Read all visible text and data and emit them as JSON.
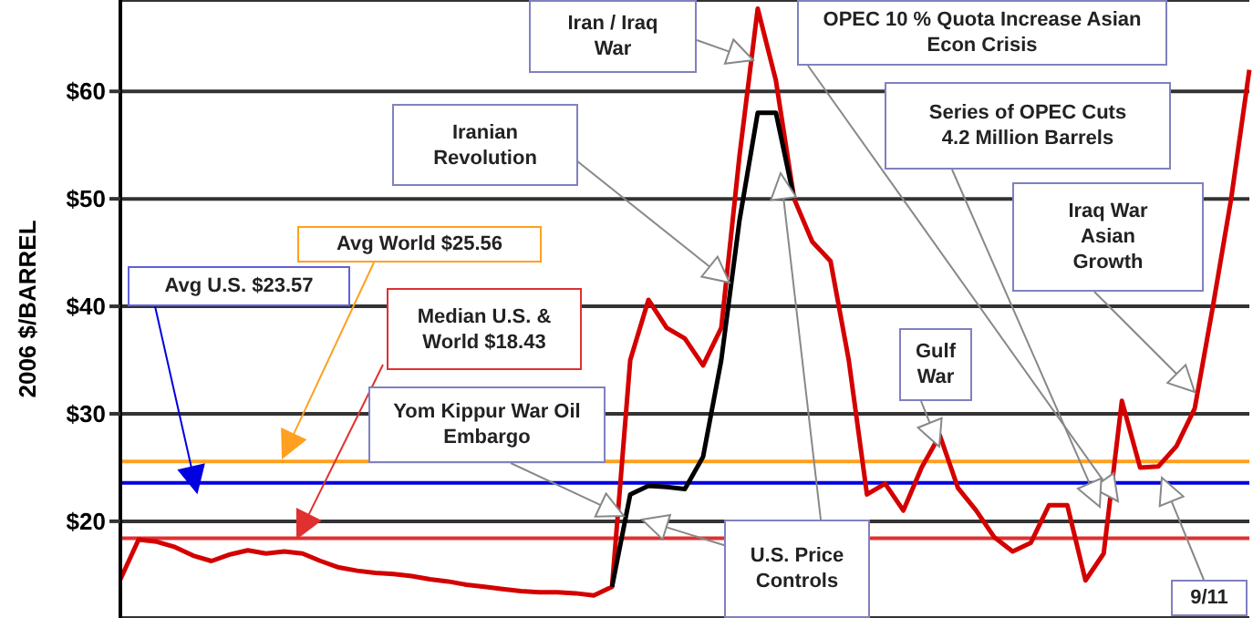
{
  "chart_data": {
    "type": "line",
    "ylabel": "2006 $/BARREL",
    "categories": [
      null,
      null,
      null,
      null,
      null,
      null,
      null,
      null,
      null,
      null,
      null,
      null,
      null,
      null,
      null,
      null,
      null,
      null,
      null,
      null,
      null,
      null,
      null,
      null,
      null,
      null,
      null,
      null,
      null,
      null,
      null,
      null,
      null,
      null,
      null,
      null,
      null,
      null,
      null,
      null,
      null,
      null,
      null,
      null,
      null,
      null,
      null,
      null,
      null,
      null,
      null,
      null,
      null,
      null,
      null,
      null,
      null,
      null,
      null,
      null,
      null,
      null,
      null
    ],
    "series": [
      {
        "color": "#d40000",
        "values": [
          14.6,
          18.3,
          18.1,
          17.6,
          16.8,
          16.3,
          16.9,
          17.3,
          17.0,
          17.2,
          17.0,
          16.3,
          15.7,
          15.4,
          15.2,
          15.1,
          14.9,
          14.6,
          14.4,
          14.1,
          13.9,
          13.7,
          13.5,
          13.4,
          13.4,
          13.3,
          13.1,
          13.9,
          35,
          40.6,
          38,
          37,
          34.5,
          38,
          54,
          67.7,
          61,
          50,
          46,
          44.2,
          35,
          22.5,
          23.5,
          21,
          25,
          28,
          23.1,
          21,
          18.5,
          17.2,
          18,
          21.5,
          21.5,
          14.5,
          17,
          31.2,
          25,
          25.1,
          27,
          30.5,
          40,
          50,
          62
        ]
      },
      {
        "color": "#000000",
        "values": [
          null,
          null,
          null,
          null,
          null,
          null,
          null,
          null,
          null,
          null,
          null,
          null,
          null,
          null,
          null,
          null,
          null,
          null,
          null,
          null,
          null,
          null,
          null,
          null,
          null,
          null,
          null,
          13.9,
          22.5,
          23.3,
          23.2,
          23,
          26,
          35,
          48,
          58,
          58,
          50,
          null,
          null,
          null,
          null,
          null,
          null,
          null,
          null,
          null,
          null,
          null,
          null,
          null,
          null,
          null,
          null,
          null,
          null,
          null,
          null,
          null,
          null,
          null,
          null,
          null
        ]
      }
    ],
    "ylim": [
      11,
      68.5
    ],
    "yticks": [
      {
        "value": 20,
        "label": "$20"
      },
      {
        "value": 30,
        "label": "$30"
      },
      {
        "value": 40,
        "label": "$40"
      },
      {
        "value": 50,
        "label": "$50"
      },
      {
        "value": 60,
        "label": "$60"
      }
    ],
    "grid": "y",
    "marker": "none",
    "line_style": "solid",
    "ref_lines": [
      {
        "axis": "y",
        "value": 25.56,
        "color": "#ffa020"
      },
      {
        "axis": "y",
        "value": 23.57,
        "color": "#0000e0"
      },
      {
        "axis": "y",
        "value": 18.43,
        "color": "#e03030"
      }
    ],
    "annotations": [
      "Iran / Iraq War",
      "OPEC 10 % Quota Increase Asian Econ Crisis",
      "Iranian Revolution",
      "Series of OPEC Cuts 4.2 Million Barrels",
      "Iraq War Asian Growth",
      "Avg World $25.56",
      "Avg U.S. $23.57",
      "Median U.S. & World  $18.43",
      "Yom Kippur War Oil Embargo",
      "Gulf War",
      "U.S. Price Controls",
      "9/11"
    ]
  }
}
